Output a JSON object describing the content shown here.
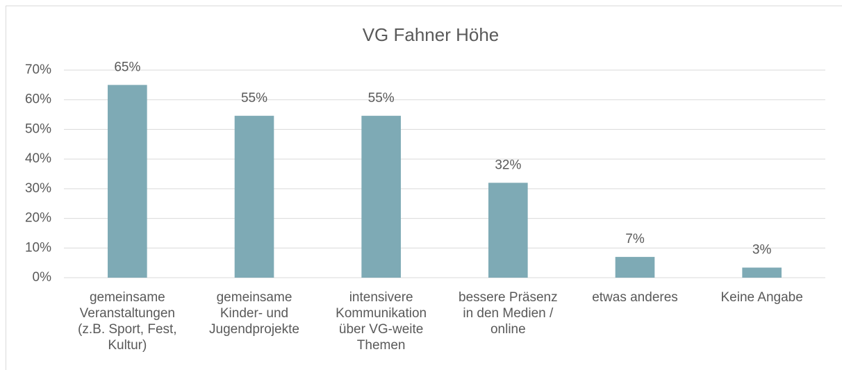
{
  "chart_data": {
    "type": "bar",
    "title": "VG Fahner Höhe",
    "categories": [
      "gemeinsame\nVeranstaltungen\n(z.B. Sport, Fest,\nKultur)",
      "gemeinsame\nKinder- und\nJugendprojekte",
      "intensivere\nKommunikation\nüber VG-weite\nThemen",
      "bessere Präsenz\nin den Medien /\nonline",
      "etwas anderes",
      "Keine Angabe"
    ],
    "values": [
      65,
      54.6,
      54.6,
      32,
      7,
      3.4
    ],
    "value_labels": [
      "65%",
      "55%",
      "55%",
      "32%",
      "7%",
      "3%"
    ],
    "color": "#7eaab5",
    "ylim": [
      0,
      70
    ],
    "yticks": [
      {
        "value": 0,
        "label": "0%"
      },
      {
        "value": 10,
        "label": "10%"
      },
      {
        "value": 20,
        "label": "20%"
      },
      {
        "value": 30,
        "label": "30%"
      },
      {
        "value": 40,
        "label": "40%"
      },
      {
        "value": 50,
        "label": "50%"
      },
      {
        "value": 60,
        "label": "60%"
      },
      {
        "value": 70,
        "label": "70%"
      }
    ],
    "grid": true
  }
}
